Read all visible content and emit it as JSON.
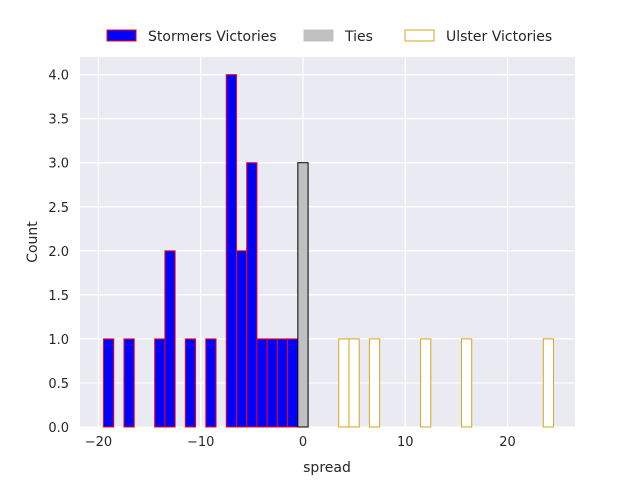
{
  "chart_data": {
    "type": "bar",
    "xlabel": "spread",
    "ylabel": "Count",
    "xlim": [
      -21.8,
      26.6
    ],
    "ylim": [
      0,
      4.2
    ],
    "xticks": [
      -20,
      -10,
      0,
      10,
      20
    ],
    "yticks": [
      0.0,
      0.5,
      1.0,
      1.5,
      2.0,
      2.5,
      3.0,
      3.5,
      4.0
    ],
    "grid": true,
    "legend_position": "top",
    "bin_width": 1,
    "series": [
      {
        "name": "Stormers Victories",
        "fill": "#0000ff",
        "edge": "#ff0000",
        "x": [
          -19,
          -17,
          -14,
          -13,
          -11,
          -9,
          -7,
          -6,
          -5,
          -4,
          -3,
          -2,
          -1
        ],
        "values": [
          1,
          1,
          1,
          2,
          1,
          1,
          4,
          2,
          3,
          1,
          1,
          1,
          1
        ]
      },
      {
        "name": "Ties",
        "fill": "#c0c0c0",
        "edge": "#000000",
        "x": [
          0
        ],
        "values": [
          3
        ]
      },
      {
        "name": "Ulster Victories",
        "fill": "#ffffff",
        "edge": "#daa520",
        "x": [
          4,
          5,
          7,
          12,
          16,
          24
        ],
        "values": [
          1,
          1,
          1,
          1,
          1,
          1
        ]
      }
    ]
  }
}
